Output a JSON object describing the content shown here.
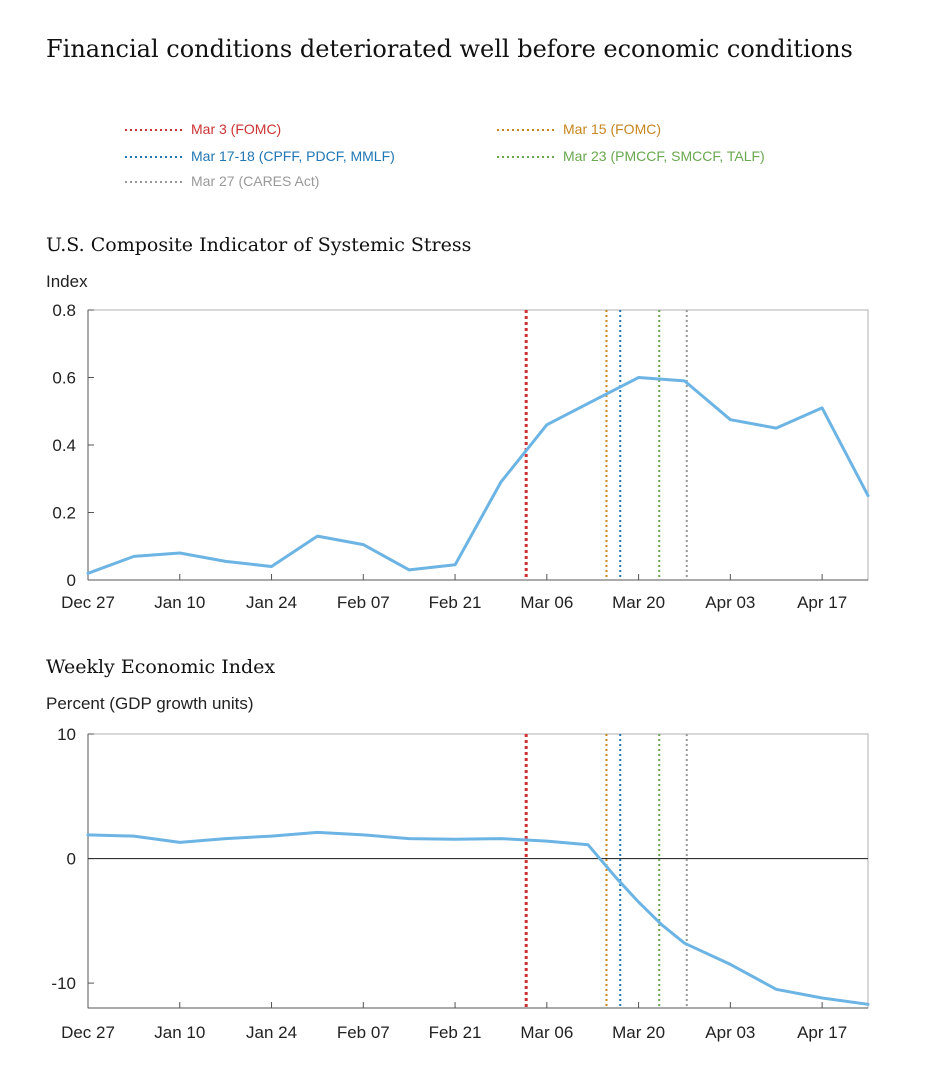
{
  "title": "Financial conditions deteriorated well before economic conditions",
  "legend": [
    {
      "label": "Mar 3 (FOMC)",
      "color": "#cc3333"
    },
    {
      "label": "Mar 15 (FOMC)",
      "color": "#c8861e"
    },
    {
      "label": "Mar 17-18 (CPFF, PDCF, MMLF)",
      "color": "#1f77b4"
    },
    {
      "label": "Mar 23 (PMCCF, SMCCF, TALF)",
      "color": "#6aa84f"
    },
    {
      "label": "Mar 27 (CARES Act)",
      "color": "#999999"
    }
  ],
  "line_color": "#6cb4e4",
  "chart_data": [
    {
      "type": "line",
      "title": "U.S. Composite Indicator of Systemic Stress",
      "ylabel": "Index",
      "xlim": [
        0,
        17
      ],
      "ylim": [
        0,
        0.8
      ],
      "x_tick_labels": [
        "Dec 27",
        "Jan 10",
        "Jan 24",
        "Feb 07",
        "Feb 21",
        "Mar 06",
        "Mar 20",
        "Apr 03",
        "Apr 17"
      ],
      "y_ticks": [
        0,
        0.2,
        0.4,
        0.6,
        0.8
      ],
      "y_tick_labels": [
        "0",
        "0.2",
        "0.4",
        "0.6",
        "0.8"
      ],
      "zero_line": false,
      "x": [
        0,
        1,
        2,
        3,
        4,
        5,
        6,
        7,
        8,
        9,
        10,
        11,
        12,
        13,
        14,
        15,
        16,
        17
      ],
      "values": [
        0.02,
        0.07,
        0.08,
        0.055,
        0.04,
        0.13,
        0.105,
        0.03,
        0.045,
        0.29,
        0.46,
        0.53,
        0.6,
        0.59,
        0.475,
        0.45,
        0.51,
        0.25
      ],
      "event_lines_x": [
        9.55,
        11.3,
        11.6,
        12.45,
        13.05
      ]
    },
    {
      "type": "line",
      "title": "Weekly Economic Index",
      "ylabel": "Percent (GDP growth units)",
      "xlim": [
        0,
        17
      ],
      "ylim": [
        -12,
        10
      ],
      "x_tick_labels": [
        "Dec 27",
        "Jan 10",
        "Jan 24",
        "Feb 07",
        "Feb 21",
        "Mar 06",
        "Mar 20",
        "Apr 03",
        "Apr 17"
      ],
      "y_ticks": [
        -10,
        0,
        10
      ],
      "y_tick_labels": [
        "-10",
        "0",
        "10"
      ],
      "zero_line": true,
      "x": [
        0,
        1,
        2,
        3,
        4,
        5,
        6,
        7,
        8,
        9,
        10,
        10.9,
        11.5,
        12,
        12.5,
        13,
        14,
        15,
        16,
        17
      ],
      "values": [
        1.9,
        1.8,
        1.3,
        1.6,
        1.8,
        2.1,
        1.9,
        1.6,
        1.55,
        1.6,
        1.4,
        1.1,
        -1.5,
        -3.5,
        -5.3,
        -6.8,
        -8.5,
        -10.5,
        -11.2,
        -11.7
      ],
      "event_lines_x": [
        9.55,
        11.3,
        11.6,
        12.45,
        13.05
      ]
    }
  ]
}
